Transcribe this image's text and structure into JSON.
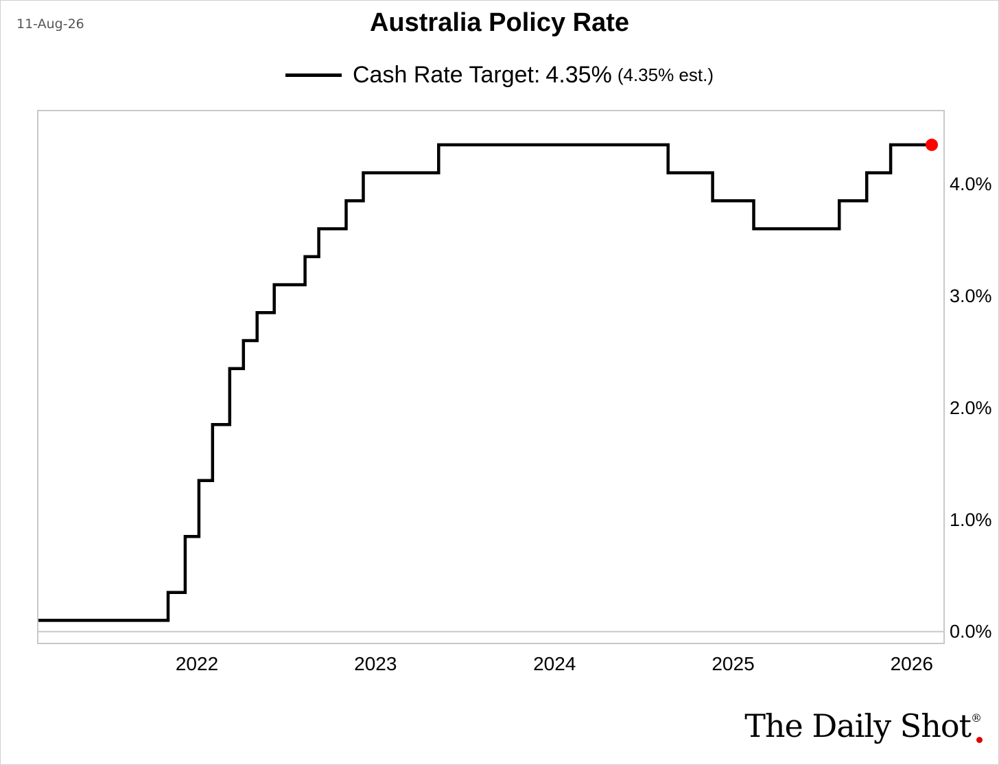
{
  "date_stamp": "11-Aug-26",
  "colors": {
    "line": "#000000",
    "marker": "#ff0000",
    "axis": "#c8c8c8",
    "zero_line": "#c8c8c8"
  },
  "logo": {
    "text": "The Daily Shot",
    "mark": "®"
  },
  "chart_data": {
    "type": "line",
    "title": "Australia Policy Rate",
    "legend": {
      "label": "Cash Rate Target:",
      "value": "4.35%",
      "estimate": "(4.35% est.)",
      "placement": "top-center"
    },
    "x_axis": {
      "ticks": [
        "2022",
        "2023",
        "2024",
        "2025",
        "2026"
      ],
      "range": [
        "2021-08-11",
        "2026-08-11"
      ]
    },
    "y_axis": {
      "ticks": [
        "0.0%",
        "1.0%",
        "2.0%",
        "3.0%",
        "4.0%"
      ],
      "range": [
        -0.1,
        4.65
      ],
      "position": "right"
    },
    "grid": false,
    "step": true,
    "series": [
      {
        "name": "Cash Rate Target",
        "points": [
          {
            "x": "2021-08-11",
            "y": 0.1
          },
          {
            "x": "2022-05-03",
            "y": 0.35
          },
          {
            "x": "2022-06-07",
            "y": 0.85
          },
          {
            "x": "2022-07-05",
            "y": 1.35
          },
          {
            "x": "2022-08-02",
            "y": 1.85
          },
          {
            "x": "2022-09-06",
            "y": 2.35
          },
          {
            "x": "2022-10-04",
            "y": 2.6
          },
          {
            "x": "2022-11-01",
            "y": 2.85
          },
          {
            "x": "2022-12-06",
            "y": 3.1
          },
          {
            "x": "2023-02-07",
            "y": 3.35
          },
          {
            "x": "2023-03-07",
            "y": 3.6
          },
          {
            "x": "2023-05-02",
            "y": 3.85
          },
          {
            "x": "2023-06-06",
            "y": 4.1
          },
          {
            "x": "2023-11-07",
            "y": 4.35
          },
          {
            "x": "2025-02-18",
            "y": 4.1
          },
          {
            "x": "2025-05-20",
            "y": 3.85
          },
          {
            "x": "2025-08-12",
            "y": 3.6
          },
          {
            "x": "2026-02-03",
            "y": 3.85
          },
          {
            "x": "2026-03-31",
            "y": 4.1
          },
          {
            "x": "2026-05-19",
            "y": 4.35
          },
          {
            "x": "2026-08-11",
            "y": 4.35
          }
        ],
        "last_value": 4.35
      }
    ]
  }
}
